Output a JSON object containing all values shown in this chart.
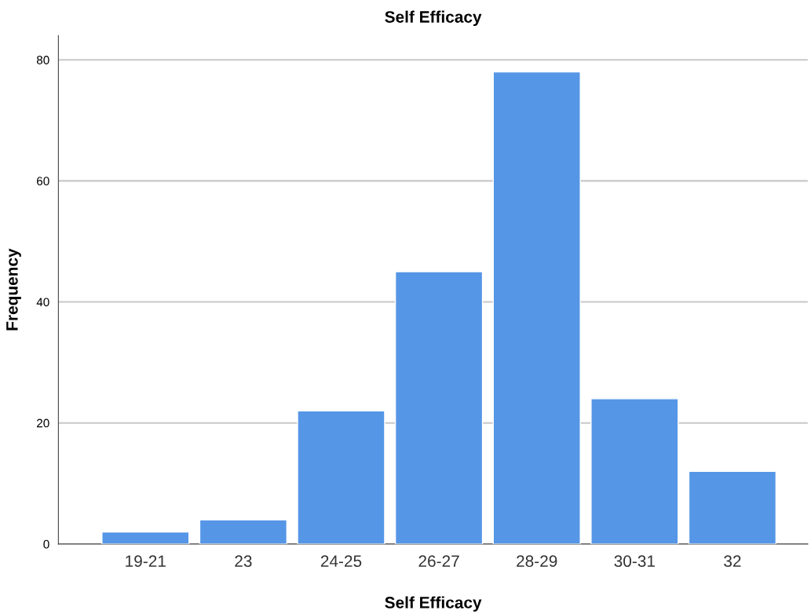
{
  "chart_data": {
    "type": "bar",
    "title": "Self Efficacy",
    "xlabel": "Self Efficacy",
    "ylabel": "Frequency",
    "categories": [
      "19-21",
      "23",
      "24-25",
      "26-27",
      "28-29",
      "30-31",
      "32"
    ],
    "values": [
      2,
      4,
      22,
      45,
      78,
      24,
      12
    ],
    "color": "#5596e6",
    "ylim": [
      0,
      84
    ],
    "yticks": [
      0,
      20,
      40,
      60,
      80
    ],
    "grid": "y",
    "legend": false
  }
}
